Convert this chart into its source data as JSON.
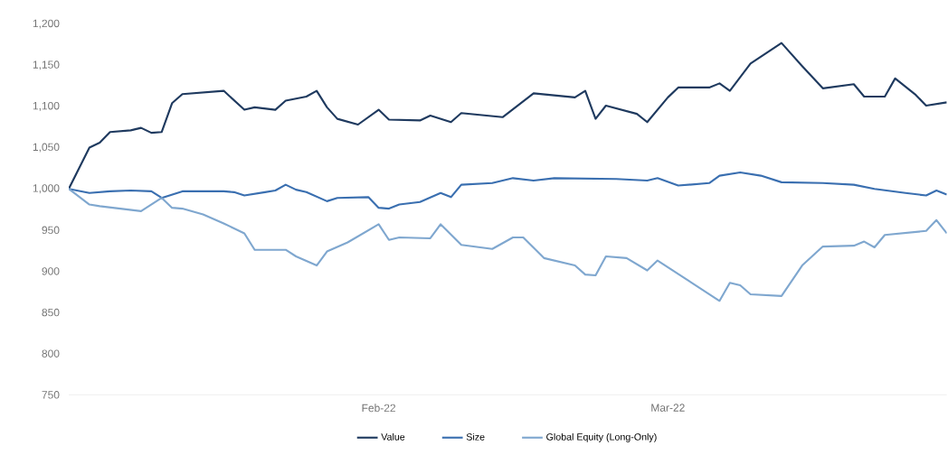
{
  "chart_data": {
    "type": "line",
    "xlim": [
      "2022-01-02",
      "2022-03-28"
    ],
    "xticks": [
      {
        "value": "2022-02-01",
        "label": "Feb-22"
      },
      {
        "value": "2022-03-01",
        "label": "Mar-22"
      }
    ],
    "ylim": [
      750,
      1200
    ],
    "yticks": [
      750,
      800,
      850,
      900,
      950,
      {
        "value": 1000,
        "label": "1,000"
      },
      {
        "value": 1050,
        "label": "1,050"
      },
      {
        "value": 1100,
        "label": "1,100"
      },
      {
        "value": 1150,
        "label": "1,150"
      },
      {
        "value": 1200,
        "label": "1,200"
      }
    ],
    "grid": false,
    "legend": "bottom",
    "marker": "none",
    "line_style": "solid",
    "series": [
      {
        "name": "Value",
        "color": "#1f3a5f",
        "x": [
          "2022-01-02",
          "2022-01-04",
          "2022-01-05",
          "2022-01-06",
          "2022-01-08",
          "2022-01-09",
          "2022-01-10",
          "2022-01-11",
          "2022-01-12",
          "2022-01-13",
          "2022-01-17",
          "2022-01-19",
          "2022-01-20",
          "2022-01-22",
          "2022-01-23",
          "2022-01-25",
          "2022-01-26",
          "2022-01-27",
          "2022-01-28",
          "2022-01-30",
          "2022-02-01",
          "2022-02-02",
          "2022-02-05",
          "2022-02-06",
          "2022-02-08",
          "2022-02-09",
          "2022-02-13",
          "2022-02-16",
          "2022-02-20",
          "2022-02-21",
          "2022-02-22",
          "2022-02-23",
          "2022-02-26",
          "2022-02-27",
          "2022-03-01",
          "2022-03-02",
          "2022-03-05",
          "2022-03-06",
          "2022-03-07",
          "2022-03-09",
          "2022-03-12",
          "2022-03-14",
          "2022-03-16",
          "2022-03-19",
          "2022-03-20",
          "2022-03-22",
          "2022-03-23",
          "2022-03-25",
          "2022-03-26",
          "2022-03-28"
        ],
        "values": [
          1000,
          1050,
          1056,
          1069,
          1071,
          1074,
          1068,
          1069,
          1104,
          1115,
          1119,
          1096,
          1099,
          1096,
          1107,
          1112,
          1119,
          1099,
          1085,
          1078,
          1096,
          1084,
          1083,
          1089,
          1081,
          1092,
          1087,
          1116,
          1111,
          1119,
          1085,
          1101,
          1091,
          1081,
          1111,
          1123,
          1123,
          1128,
          1119,
          1152,
          1177,
          1149,
          1122,
          1127,
          1112,
          1112,
          1134,
          1114,
          1101,
          1105
        ]
      },
      {
        "name": "Size",
        "color": "#3a6fb0",
        "x": [
          "2022-01-02",
          "2022-01-04",
          "2022-01-06",
          "2022-01-08",
          "2022-01-10",
          "2022-01-11",
          "2022-01-13",
          "2022-01-17",
          "2022-01-18",
          "2022-01-19",
          "2022-01-21",
          "2022-01-22",
          "2022-01-23",
          "2022-01-24",
          "2022-01-25",
          "2022-01-27",
          "2022-01-28",
          "2022-01-31",
          "2022-02-01",
          "2022-02-02",
          "2022-02-03",
          "2022-02-05",
          "2022-02-07",
          "2022-02-08",
          "2022-02-09",
          "2022-02-12",
          "2022-02-14",
          "2022-02-16",
          "2022-02-18",
          "2022-02-24",
          "2022-02-27",
          "2022-02-28",
          "2022-03-02",
          "2022-03-05",
          "2022-03-06",
          "2022-03-08",
          "2022-03-10",
          "2022-03-12",
          "2022-03-16",
          "2022-03-19",
          "2022-03-21",
          "2022-03-24",
          "2022-03-26",
          "2022-03-27",
          "2022-03-28"
        ],
        "values": [
          1000,
          995,
          997,
          998,
          997,
          989,
          997,
          997,
          996,
          992,
          996,
          998,
          1005,
          999,
          996,
          985,
          989,
          990,
          977,
          976,
          981,
          984,
          995,
          990,
          1005,
          1007,
          1013,
          1010,
          1013,
          1012,
          1010,
          1013,
          1004,
          1007,
          1016,
          1020,
          1016,
          1008,
          1007,
          1005,
          1000,
          995,
          992,
          998,
          993
        ]
      },
      {
        "name": "Global Equity (Long-Only)",
        "color": "#7fa7cf",
        "x": [
          "2022-01-02",
          "2022-01-04",
          "2022-01-05",
          "2022-01-09",
          "2022-01-11",
          "2022-01-12",
          "2022-01-13",
          "2022-01-15",
          "2022-01-17",
          "2022-01-19",
          "2022-01-20",
          "2022-01-23",
          "2022-01-24",
          "2022-01-26",
          "2022-01-27",
          "2022-01-29",
          "2022-02-01",
          "2022-02-02",
          "2022-02-03",
          "2022-02-06",
          "2022-02-07",
          "2022-02-09",
          "2022-02-12",
          "2022-02-14",
          "2022-02-15",
          "2022-02-17",
          "2022-02-20",
          "2022-02-21",
          "2022-02-22",
          "2022-02-23",
          "2022-02-25",
          "2022-02-27",
          "2022-02-28",
          "2022-03-06",
          "2022-03-07",
          "2022-03-08",
          "2022-03-09",
          "2022-03-12",
          "2022-03-14",
          "2022-03-16",
          "2022-03-19",
          "2022-03-20",
          "2022-03-21",
          "2022-03-22",
          "2022-03-26",
          "2022-03-27",
          "2022-03-28"
        ],
        "values": [
          1000,
          981,
          979,
          973,
          989,
          977,
          976,
          969,
          958,
          946,
          926,
          926,
          918,
          907,
          924,
          935,
          957,
          938,
          941,
          940,
          957,
          932,
          927,
          941,
          941,
          916,
          907,
          896,
          895,
          918,
          916,
          901,
          913,
          864,
          886,
          883,
          872,
          870,
          907,
          930,
          931,
          936,
          929,
          944,
          949,
          962,
          946
        ]
      }
    ]
  }
}
